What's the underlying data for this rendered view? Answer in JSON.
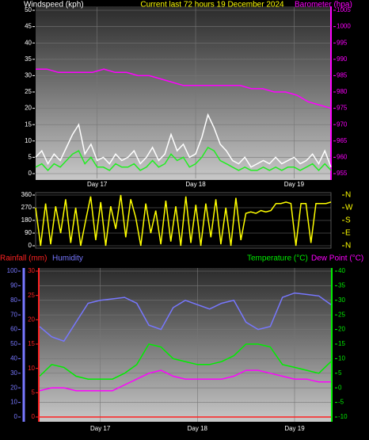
{
  "chart_data": [
    {
      "type": "line",
      "title": "Current last 72 hours 19 December 2024",
      "y_label": "Windspeed (kph)",
      "y2_label": "Barometer (hpa)",
      "xlim": [
        0,
        72
      ],
      "xticks": [
        {
          "value": 15,
          "label": "Day 17"
        },
        {
          "value": 39,
          "label": "Day 18"
        },
        {
          "value": 63,
          "label": "Day 19"
        }
      ],
      "ylim": [
        0,
        50
      ],
      "yticks": [
        0,
        5,
        10,
        15,
        20,
        25,
        30,
        35,
        40,
        45,
        50
      ],
      "y2lim": [
        955,
        1005
      ],
      "y2ticks": [
        955,
        960,
        965,
        970,
        975,
        980,
        985,
        990,
        995,
        1000,
        1005
      ],
      "grid": true,
      "series": [
        {
          "color": "#ffffff",
          "axis": "y",
          "values": [
            5,
            7,
            3,
            6,
            4,
            8,
            12,
            15,
            6,
            9,
            4,
            5,
            3,
            6,
            4,
            5,
            7,
            3,
            5,
            8,
            4,
            6,
            12,
            7,
            9,
            5,
            6,
            11,
            18,
            14,
            9,
            7,
            4,
            3,
            5,
            2,
            3,
            4,
            3,
            5,
            3,
            4,
            5,
            3,
            4,
            6,
            3,
            7,
            2
          ]
        },
        {
          "color": "#22ee22",
          "axis": "y",
          "values": [
            2,
            3,
            1,
            3,
            2,
            4,
            6,
            7,
            3,
            5,
            2,
            2,
            1,
            3,
            2,
            2,
            3,
            1,
            2,
            4,
            2,
            3,
            6,
            4,
            5,
            2,
            3,
            5,
            8,
            7,
            4,
            3,
            2,
            1,
            2,
            1,
            1,
            2,
            1,
            2,
            1,
            2,
            2,
            1,
            2,
            3,
            1,
            3,
            1
          ]
        },
        {
          "color": "#ff00ff",
          "axis": "y2",
          "values": [
            987,
            987,
            986,
            986,
            986,
            986,
            987,
            986,
            986,
            985,
            985,
            984,
            983,
            982,
            982,
            982,
            982,
            982,
            982,
            981,
            981,
            980,
            980,
            979,
            977,
            976,
            975
          ]
        }
      ]
    },
    {
      "type": "line",
      "xlim": [
        0,
        72
      ],
      "ylim": [
        0,
        360
      ],
      "yticks": [
        0,
        90,
        180,
        270,
        360
      ],
      "y2lim": [
        0,
        360
      ],
      "y2ticks": [
        {
          "value": 360,
          "label": "N"
        },
        {
          "value": 270,
          "label": "W"
        },
        {
          "value": 180,
          "label": "S"
        },
        {
          "value": 90,
          "label": "E"
        },
        {
          "value": 0,
          "label": "N"
        }
      ],
      "grid": true,
      "series": [
        {
          "color": "#ffff00",
          "axis": "y",
          "values": [
            270,
            0,
            300,
            10,
            280,
            90,
            330,
            20,
            270,
            0,
            180,
            350,
            40,
            310,
            0,
            280,
            120,
            360,
            60,
            330,
            200,
            0,
            300,
            90,
            250,
            10,
            320,
            30,
            280,
            0,
            350,
            20,
            290,
            0,
            300,
            60,
            330,
            10,
            270,
            0,
            340,
            40,
            230,
            240,
            230,
            250,
            240,
            250,
            300,
            300,
            310,
            300,
            0,
            300,
            300,
            20,
            300,
            300,
            300,
            310
          ]
        }
      ]
    },
    {
      "type": "line",
      "xlim": [
        0,
        72
      ],
      "xticks": [
        {
          "value": 15,
          "label": "Day 17"
        },
        {
          "value": 39,
          "label": "Day 18"
        },
        {
          "value": 63,
          "label": "Day 19"
        }
      ],
      "ylim": [
        0,
        30
      ],
      "yticks": [
        0,
        5,
        10,
        15,
        20,
        25,
        30
      ],
      "y2lim": [
        -10,
        40
      ],
      "y2ticks": [
        -10,
        -5,
        0,
        5,
        10,
        15,
        20,
        25,
        30,
        35,
        40
      ],
      "y3lim": [
        0,
        100
      ],
      "y3ticks": [
        0,
        10,
        20,
        30,
        40,
        50,
        60,
        70,
        80,
        90,
        100
      ],
      "grid": true,
      "series": [
        {
          "name": "Rainfall (mm)",
          "color": "#ff2222",
          "axis": "y",
          "values": [
            0,
            0,
            0,
            0,
            0,
            0,
            0,
            0,
            0,
            0,
            0,
            0,
            0,
            0,
            0,
            0,
            0,
            0,
            0,
            0,
            0,
            0,
            0,
            0,
            0
          ]
        },
        {
          "name": "Humidity",
          "color": "#7777ff",
          "axis": "y3",
          "values": [
            62,
            55,
            52,
            65,
            78,
            80,
            81,
            82,
            78,
            63,
            60,
            75,
            80,
            77,
            74,
            78,
            80,
            65,
            60,
            62,
            82,
            85,
            84,
            83,
            77
          ]
        },
        {
          "name": "Temperature (°C)",
          "color": "#00ee00",
          "axis": "y2",
          "values": [
            4,
            8,
            7,
            4,
            3,
            3,
            3,
            5,
            8,
            15,
            14,
            10,
            9,
            8,
            8,
            9,
            11,
            15,
            15,
            14,
            8,
            7,
            6,
            5,
            9
          ]
        },
        {
          "name": "Dew Point (°C)",
          "color": "#ff00ff",
          "axis": "y2",
          "values": [
            -1,
            0,
            0,
            -1,
            -1,
            -1,
            -1,
            1,
            3,
            5,
            6,
            4,
            3,
            3,
            3,
            3,
            4,
            6,
            6,
            5,
            4,
            3,
            3,
            2,
            2
          ]
        }
      ]
    }
  ]
}
